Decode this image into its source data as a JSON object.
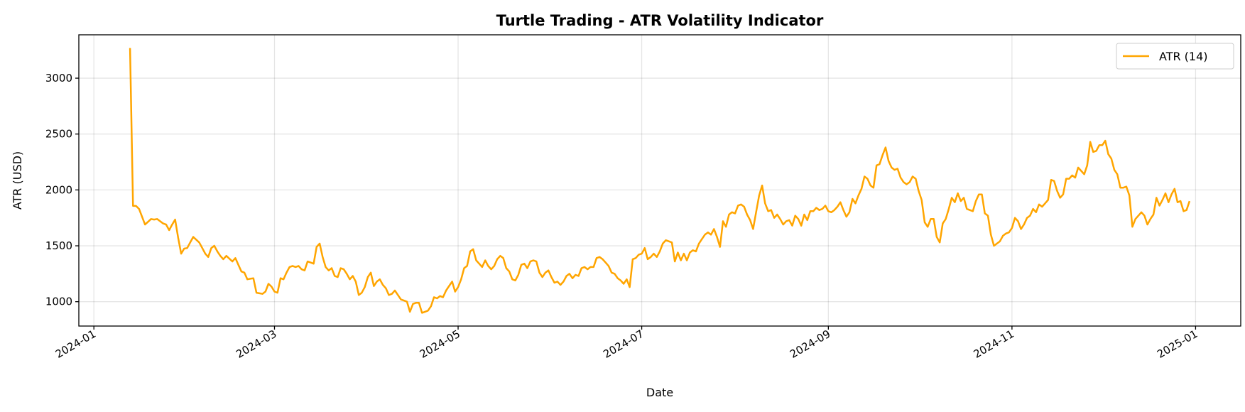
{
  "chart_data": {
    "type": "line",
    "title": "Turtle Trading - ATR Volatility Indicator",
    "xlabel": "Date",
    "ylabel": "ATR (USD)",
    "xlim": [
      "2023-12-27",
      "2025-01-16"
    ],
    "ylim": [
      782,
      3388
    ],
    "x_ticks": [
      "2024-01",
      "2024-03",
      "2024-05",
      "2024-07",
      "2024-09",
      "2024-11",
      "2025-01"
    ],
    "y_ticks": [
      1000,
      1500,
      2000,
      2500,
      3000
    ],
    "grid": true,
    "legend": {
      "placement": "top-right"
    },
    "frequency": "daily",
    "series": [
      {
        "name": "ATR (14)",
        "color": "#FFA500",
        "months": [
          {
            "start": "2024-01-13",
            "values": [
              3270,
              1857,
              1857,
              1830,
              1760,
              1690,
              1715,
              1740,
              1735,
              1740,
              1720,
              1700,
              1690,
              1640,
              1690,
              1735,
              1570,
              1430,
              1475
            ]
          },
          {
            "start": "2024-02-01",
            "values": [
              1480,
              1530,
              1580,
              1555,
              1530,
              1480,
              1430,
              1400,
              1480,
              1500,
              1450,
              1410,
              1380,
              1410,
              1385,
              1360,
              1390,
              1330,
              1270,
              1260,
              1200,
              1205,
              1210,
              1080,
              1075,
              1070,
              1090,
              1160,
              1135
            ]
          },
          {
            "start": "2024-03-01",
            "values": [
              1090,
              1080,
              1210,
              1200,
              1260,
              1310,
              1320,
              1310,
              1320,
              1290,
              1280,
              1360,
              1350,
              1340,
              1490,
              1520,
              1400,
              1310,
              1280,
              1300,
              1230,
              1220,
              1300,
              1290,
              1250,
              1200,
              1230,
              1180,
              1060,
              1080,
              1130
            ]
          },
          {
            "start": "2024-04-01",
            "values": [
              1220,
              1260,
              1140,
              1180,
              1200,
              1150,
              1120,
              1060,
              1070,
              1100,
              1060,
              1020,
              1010,
              1000,
              910,
              980,
              990,
              990,
              900,
              910,
              920,
              960,
              1040,
              1030,
              1050,
              1040,
              1100,
              1140,
              1180,
              1090
            ]
          },
          {
            "start": "2024-05-01",
            "values": [
              1130,
              1200,
              1300,
              1320,
              1450,
              1470,
              1370,
              1340,
              1310,
              1370,
              1320,
              1290,
              1320,
              1380,
              1410,
              1390,
              1300,
              1270,
              1200,
              1190,
              1240,
              1330,
              1340,
              1300,
              1360,
              1370,
              1360,
              1260,
              1220,
              1260,
              1280
            ]
          },
          {
            "start": "2024-06-01",
            "values": [
              1220,
              1170,
              1180,
              1150,
              1180,
              1230,
              1250,
              1210,
              1240,
              1230,
              1300,
              1310,
              1290,
              1310,
              1310,
              1390,
              1400,
              1380,
              1350,
              1320,
              1260,
              1250,
              1210,
              1190,
              1160,
              1200,
              1130,
              1380,
              1390,
              1420
            ]
          },
          {
            "start": "2024-07-01",
            "values": [
              1430,
              1480,
              1380,
              1400,
              1430,
              1400,
              1450,
              1520,
              1550,
              1540,
              1530,
              1360,
              1440,
              1370,
              1430,
              1370,
              1440,
              1460,
              1450,
              1520,
              1560,
              1600,
              1620,
              1600,
              1650,
              1580,
              1490,
              1720,
              1670,
              1780,
              1800
            ]
          },
          {
            "start": "2024-08-01",
            "values": [
              1790,
              1860,
              1870,
              1850,
              1780,
              1730,
              1650,
              1800,
              1950,
              2040,
              1880,
              1810,
              1820,
              1750,
              1780,
              1740,
              1690,
              1720,
              1730,
              1680,
              1770,
              1740,
              1680,
              1780,
              1730,
              1810,
              1810,
              1840,
              1820,
              1830,
              1860
            ]
          },
          {
            "start": "2024-09-01",
            "values": [
              1810,
              1800,
              1820,
              1850,
              1890,
              1820,
              1760,
              1800,
              1920,
              1880,
              1950,
              2010,
              2120,
              2100,
              2040,
              2020,
              2220,
              2230,
              2310,
              2380,
              2260,
              2200,
              2180,
              2190,
              2110,
              2070,
              2050,
              2070,
              2120,
              2100
            ]
          },
          {
            "start": "2024-10-01",
            "values": [
              1990,
              1910,
              1710,
              1670,
              1740,
              1740,
              1580,
              1530,
              1700,
              1740,
              1830,
              1930,
              1890,
              1970,
              1900,
              1930,
              1830,
              1820,
              1810,
              1900,
              1960,
              1960,
              1790,
              1770,
              1600,
              1500,
              1520,
              1540,
              1590,
              1610,
              1620
            ]
          },
          {
            "start": "2024-11-01",
            "values": [
              1660,
              1750,
              1720,
              1650,
              1690,
              1750,
              1770,
              1830,
              1800,
              1870,
              1850,
              1880,
              1910,
              2090,
              2080,
              1990,
              1930,
              1960,
              2100,
              2100,
              2130,
              2110,
              2200,
              2170,
              2140,
              2220,
              2430,
              2340,
              2350,
              2400
            ]
          },
          {
            "start": "2024-12-01",
            "values": [
              2400,
              2440,
              2320,
              2280,
              2180,
              2140,
              2020,
              2020,
              2030,
              1950,
              1670,
              1740,
              1770,
              1800,
              1770,
              1690,
              1740,
              1780,
              1930,
              1860,
              1910,
              1970,
              1890,
              1960,
              2010,
              1890,
              1900,
              1810,
              1820,
              1900
            ]
          }
        ]
      }
    ]
  }
}
